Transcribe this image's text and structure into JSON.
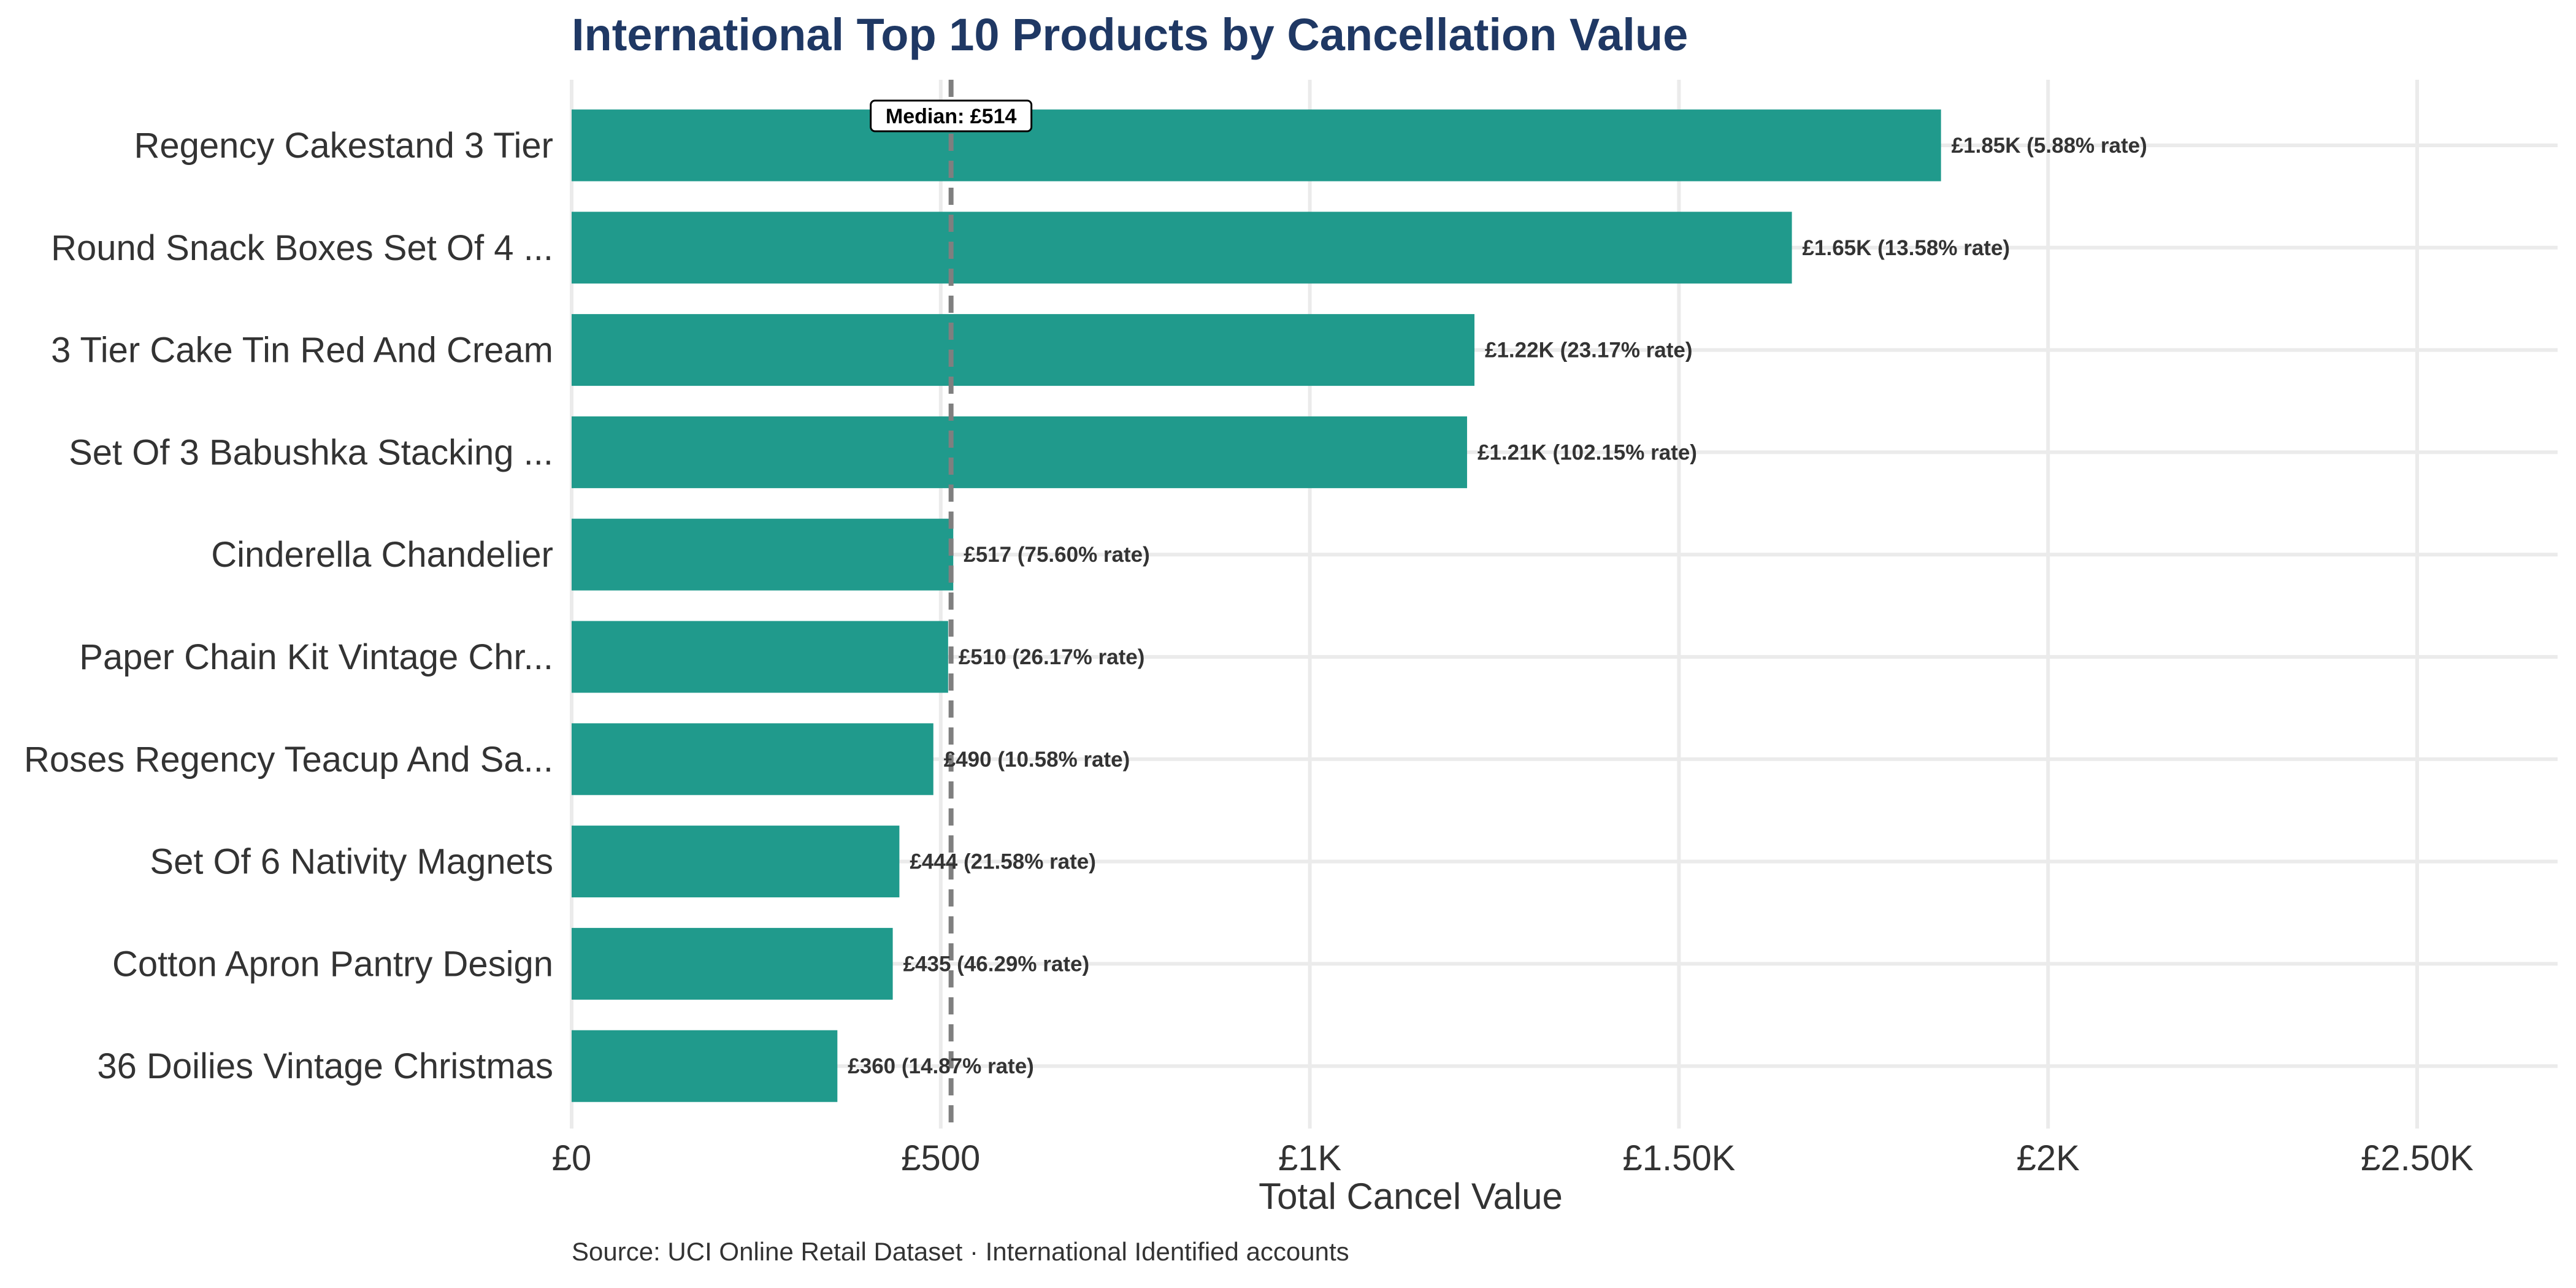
{
  "chart_data": {
    "type": "bar",
    "orientation": "horizontal",
    "title": "International Top 10 Products by Cancellation Value",
    "xlabel": "Total Cancel Value",
    "ylabel": "",
    "xlim": [
      0,
      2700
    ],
    "grid": true,
    "caption": "Source: UCI Online Retail Dataset · International Identified accounts",
    "bar_color": "#209a8c",
    "categories": [
      "Regency Cakestand 3 Tier",
      "Round Snack Boxes Set Of 4 ...",
      "3 Tier Cake Tin Red And Cream",
      "Set Of 3 Babushka Stacking ...",
      "Cinderella Chandelier",
      "Paper Chain Kit Vintage Chr...",
      "Roses Regency Teacup And Sa...",
      "Set Of 6 Nativity Magnets",
      "Cotton Apron Pantry Design",
      "36 Doilies Vintage Christmas"
    ],
    "values": [
      1855,
      1653,
      1223,
      1213,
      517,
      510,
      490,
      444,
      435,
      360
    ],
    "data_labels": [
      "£1.85K (5.88% rate)",
      "£1.65K (13.58% rate)",
      "£1.22K (23.17% rate)",
      "£1.21K (102.15% rate)",
      "£517 (75.60% rate)",
      "£510 (26.17% rate)",
      "£490 (10.58% rate)",
      "£444 (21.58% rate)",
      "£435 (46.29% rate)",
      "£360 (14.87% rate)"
    ],
    "x_ticks": [
      0,
      500,
      1000,
      1500,
      2000,
      2500
    ],
    "x_tick_labels": [
      "£0",
      "£500",
      "£1K",
      "£1.50K",
      "£2K",
      "£2.50K"
    ],
    "median": {
      "value": 514,
      "label": "Median: £514"
    }
  }
}
